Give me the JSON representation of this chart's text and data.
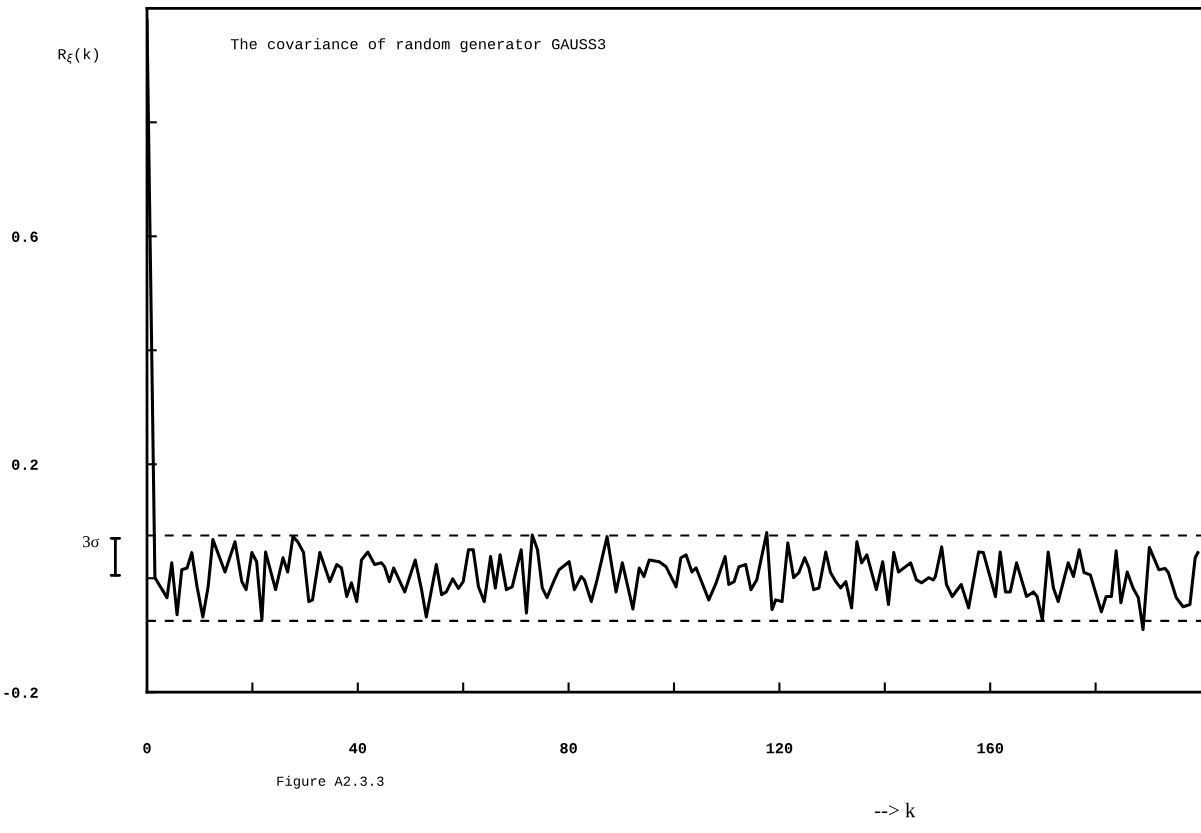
{
  "chart_data": {
    "type": "line",
    "title": "The covariance of random generator GAUSS3",
    "xlabel": "--> k",
    "ylabel": "R$_{ξ}$(k)",
    "annotations": [
      "Figure A2.3.3"
    ],
    "series": [
      {
        "color": "#000000",
        "x": [
          0,
          1.5,
          3.8,
          4.7,
          5.7,
          6.6,
          7.6,
          8.5,
          9.5,
          10.6,
          11.6,
          12.5,
          14.8,
          16.7,
          18.0,
          18.8,
          19.9,
          20.8,
          21.8,
          22.5,
          24.4,
          25.8,
          26.7,
          27.7,
          28.6,
          29.7,
          30.7,
          31.4,
          32.8,
          34.7,
          36.0,
          36.9,
          37.9,
          38.8,
          39.8,
          40.7,
          41.9,
          43.2,
          44.5,
          45.1,
          46.0,
          46.8,
          48.9,
          50.9,
          52.1,
          53.0,
          54.9,
          55.9,
          56.8,
          58.0,
          59.1,
          60.0,
          61.0,
          61.9,
          62.9,
          64.0,
          65.2,
          66.1,
          67.0,
          68.2,
          69.3,
          71.0,
          72.0,
          73.1,
          74.1,
          75.0,
          75.9,
          77.3,
          78.2,
          80.1,
          81.1,
          82.4,
          83.0,
          84.3,
          85.4,
          87.3,
          89.0,
          90.2,
          92.2,
          93.4,
          94.3,
          95.3,
          97.2,
          98.5,
          100.4,
          101.3,
          102.3,
          103.4,
          104.2,
          106.6,
          108.0,
          109.7,
          110.4,
          111.4,
          112.3,
          113.6,
          114.6,
          115.7,
          117.6,
          118.6,
          119.3,
          120.5,
          121.6,
          122.7,
          123.7,
          124.8,
          125.6,
          126.5,
          127.5,
          128.8,
          129.7,
          130.7,
          131.6,
          132.6,
          133.7,
          134.7,
          135.6,
          136.6,
          138.4,
          139.6,
          140.7,
          141.7,
          142.6,
          144.9,
          146.0,
          147.0,
          148.3,
          149.2,
          149.6,
          150.8,
          151.7,
          152.8,
          154.5,
          155.9,
          157.8,
          158.7,
          161.0,
          161.9,
          162.9,
          163.8,
          165.0,
          166.9,
          168.2,
          168.9,
          169.9,
          171.0,
          172.0,
          172.9,
          174.8,
          175.8,
          176.9,
          177.8,
          179.0,
          181.1,
          182.0,
          183.0,
          183.9,
          184.8,
          186.0,
          187.1,
          188.1,
          189.0,
          190.2,
          192.0,
          193.2,
          193.8,
          195.3,
          196.6,
          197.9,
          198.9,
          199.4
        ],
        "values": [
          0.98,
          0.001,
          -0.034,
          0.027,
          -0.064,
          0.015,
          0.018,
          0.045,
          -0.015,
          -0.068,
          -0.015,
          0.068,
          0.011,
          0.064,
          -0.006,
          -0.02,
          0.045,
          0.029,
          -0.073,
          0.046,
          -0.02,
          0.036,
          0.011,
          0.073,
          0.064,
          0.045,
          -0.041,
          -0.038,
          0.045,
          -0.006,
          0.024,
          0.018,
          -0.032,
          -0.008,
          -0.041,
          0.032,
          0.046,
          0.024,
          0.027,
          0.02,
          -0.006,
          0.018,
          -0.024,
          0.032,
          -0.02,
          -0.068,
          0.024,
          -0.029,
          -0.024,
          -0.001,
          -0.018,
          -0.006,
          0.05,
          0.05,
          -0.015,
          -0.041,
          0.038,
          -0.017,
          0.041,
          -0.02,
          -0.015,
          0.05,
          -0.061,
          0.076,
          0.05,
          -0.017,
          -0.034,
          -0.003,
          0.015,
          0.029,
          -0.02,
          0.003,
          -0.003,
          -0.041,
          -0.003,
          0.073,
          -0.024,
          0.027,
          -0.054,
          0.018,
          0.003,
          0.032,
          0.029,
          0.02,
          -0.015,
          0.036,
          0.041,
          0.011,
          0.018,
          -0.038,
          -0.008,
          0.038,
          -0.011,
          -0.006,
          0.02,
          0.024,
          -0.02,
          -0.003,
          0.08,
          -0.055,
          -0.038,
          -0.041,
          0.062,
          0.001,
          0.01,
          0.036,
          0.018,
          -0.02,
          -0.017,
          0.046,
          0.01,
          -0.006,
          -0.017,
          -0.006,
          -0.052,
          0.064,
          0.027,
          0.041,
          -0.02,
          0.029,
          -0.046,
          0.045,
          0.011,
          0.027,
          -0.003,
          -0.008,
          0.001,
          -0.003,
          0.003,
          0.055,
          -0.011,
          -0.032,
          -0.011,
          -0.052,
          0.046,
          0.045,
          -0.032,
          0.046,
          -0.024,
          -0.024,
          0.027,
          -0.032,
          -0.024,
          -0.032,
          -0.073,
          0.046,
          -0.017,
          -0.041,
          0.027,
          0.003,
          0.05,
          0.01,
          0.006,
          -0.059,
          -0.032,
          -0.032,
          0.048,
          -0.043,
          0.011,
          -0.017,
          -0.034,
          -0.09,
          0.054,
          0.015,
          0.017,
          0.01,
          -0.034,
          -0.05,
          -0.046,
          0.036,
          0.045
        ]
      }
    ],
    "xlim": [
      0,
      200
    ],
    "ylim": [
      -0.2,
      1.0
    ],
    "xticks": [
      0,
      {
        "value": 20,
        "label": null
      },
      40,
      {
        "value": 60,
        "label": null
      },
      80,
      {
        "value": 100,
        "label": null
      },
      120,
      {
        "value": 140,
        "label": null
      },
      160,
      {
        "value": 180,
        "label": null
      }
    ],
    "yticks": [
      -0.2,
      {
        "value": 0,
        "label": null
      },
      0.2,
      {
        "value": 0.4,
        "label": null
      },
      0.6,
      {
        "value": 0.8,
        "label": null
      }
    ],
    "ref_lines": [
      {
        "axis": "y",
        "value": 0.075,
        "label": "3σ",
        "line_style": "dashed",
        "color": "#000000"
      },
      {
        "axis": "y",
        "value": -0.075,
        "line_style": "dashed",
        "color": "#000000"
      }
    ],
    "grid": false,
    "legend": false,
    "marker": "none",
    "line_style": "solid"
  }
}
